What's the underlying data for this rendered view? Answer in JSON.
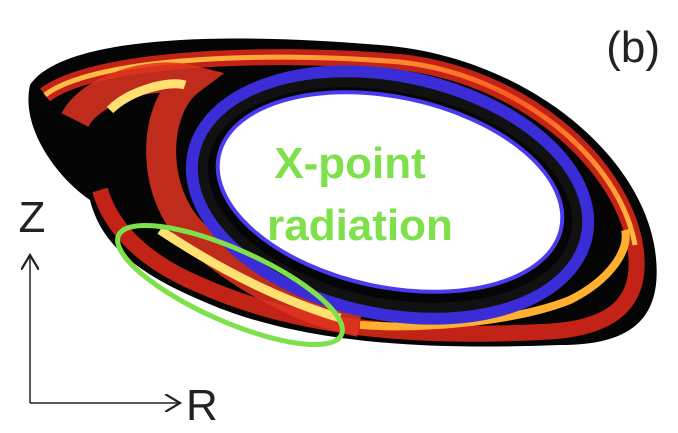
{
  "panel_label": "(b)",
  "annotation": {
    "line1": "X-point",
    "line2": "radiation"
  },
  "axes": {
    "vertical": "Z",
    "horizontal": "R"
  }
}
